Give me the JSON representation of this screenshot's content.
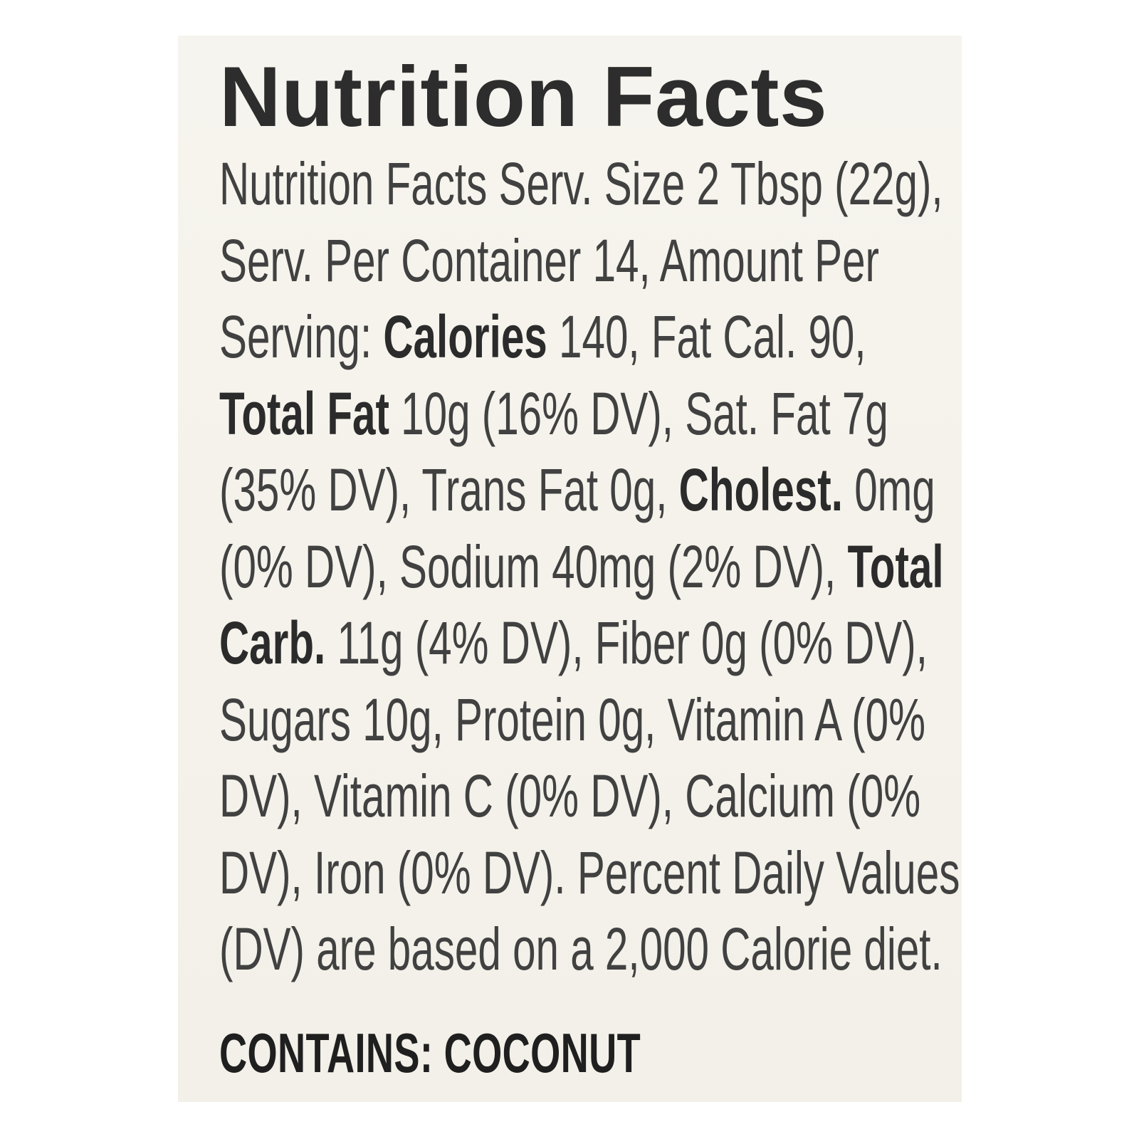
{
  "label": {
    "title": "Nutrition Facts",
    "body_lines": [
      {
        "segments": [
          {
            "text": "Nutrition Facts Serv. Size 2 Tbsp (22g),",
            "bold": false
          }
        ]
      },
      {
        "segments": [
          {
            "text": "Serv. Per Container 14, Amount Per",
            "bold": false
          }
        ]
      },
      {
        "segments": [
          {
            "text": "Serving: ",
            "bold": false
          },
          {
            "text": "Calories",
            "bold": true
          },
          {
            "text": " 140, Fat Cal. 90,",
            "bold": false
          }
        ]
      },
      {
        "segments": [
          {
            "text": "Total Fat",
            "bold": true
          },
          {
            "text": " 10g (16% DV), Sat. Fat 7g",
            "bold": false
          }
        ]
      },
      {
        "segments": [
          {
            "text": "(35% DV), Trans Fat 0g, ",
            "bold": false
          },
          {
            "text": "Cholest.",
            "bold": true
          },
          {
            "text": " 0mg",
            "bold": false
          }
        ]
      },
      {
        "segments": [
          {
            "text": "(0% DV), Sodium 40mg (2% DV), ",
            "bold": false
          },
          {
            "text": "Total",
            "bold": true
          }
        ]
      },
      {
        "segments": [
          {
            "text": "Carb.",
            "bold": true
          },
          {
            "text": " 11g (4% DV), Fiber 0g (0% DV),",
            "bold": false
          }
        ]
      },
      {
        "segments": [
          {
            "text": "Sugars 10g, Protein 0g, Vitamin A (0%",
            "bold": false
          }
        ]
      },
      {
        "segments": [
          {
            "text": "DV), Vitamin C (0% DV), Calcium (0%",
            "bold": false
          }
        ]
      },
      {
        "segments": [
          {
            "text": "DV), Iron (0% DV). Percent Daily Values",
            "bold": false
          }
        ]
      },
      {
        "segments": [
          {
            "text": "(DV) are based on a 2,000 Calorie diet.",
            "bold": false
          }
        ]
      }
    ],
    "allergen": "CONTAINS: COCONUT",
    "nutrition_values": {
      "serving_size": "2 Tbsp (22g)",
      "servings_per_container": "14",
      "calories": "140",
      "fat_calories": "90",
      "total_fat": "10g (16% DV)",
      "saturated_fat": "7g (35% DV)",
      "trans_fat": "0g",
      "cholesterol": "0mg (0% DV)",
      "sodium": "40mg (2% DV)",
      "total_carb": "11g (4% DV)",
      "fiber": "0g (0% DV)",
      "sugars": "10g",
      "protein": "0g",
      "vitamin_a": "0% DV",
      "vitamin_c": "0% DV",
      "calcium": "0% DV",
      "iron": "0% DV",
      "dv_note": "Percent Daily Values (DV) are based on a 2,000 Calorie diet."
    },
    "colors": {
      "page_bg": "#ffffff",
      "label_bg": "#f4f2ea",
      "title_text": "#2d2d2d",
      "body_text": "#414141",
      "allergen_text": "#1f1f1f"
    }
  }
}
